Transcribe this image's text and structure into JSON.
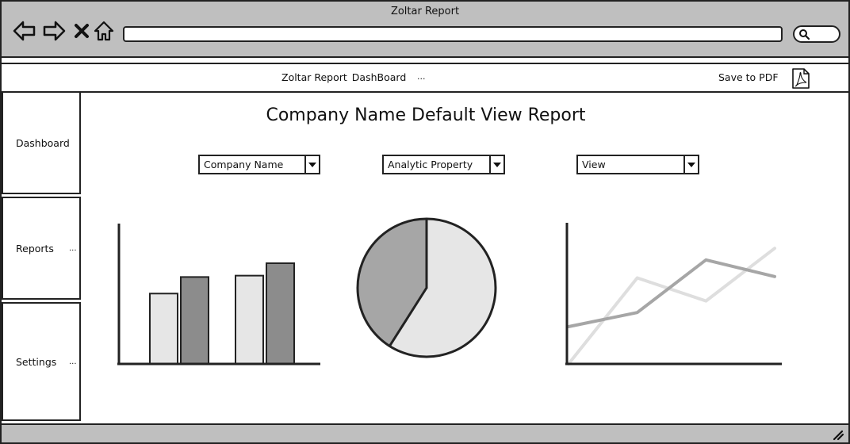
{
  "window": {
    "title": "Zoltar Report"
  },
  "chrome": {
    "buttons": [
      {
        "name": "back",
        "icon": "arrow-left-icon"
      },
      {
        "name": "forward",
        "icon": "arrow-right-icon"
      },
      {
        "name": "stop",
        "icon": "close-icon"
      },
      {
        "name": "home",
        "icon": "home-icon"
      }
    ],
    "url": "",
    "search_icon": "search-icon"
  },
  "appbar": {
    "title": "Zoltar Report",
    "subtitle": "DashBoard",
    "more": "...",
    "save_label": "Save to PDF",
    "save_icon": "pdf-icon"
  },
  "sidebar": {
    "items": [
      {
        "label": "Dashboard",
        "more": ""
      },
      {
        "label": "Reports",
        "more": "..."
      },
      {
        "label": "Settings",
        "more": "..."
      }
    ]
  },
  "main": {
    "title": "Company Name Default View Report",
    "filters": [
      {
        "value": "Company Name"
      },
      {
        "value": "Analytic Property"
      },
      {
        "value": "View"
      }
    ]
  },
  "colors": {
    "chrome": "#bfbfbf",
    "light": "#e6e6e6",
    "mid": "#a6a6a6",
    "dark": "#8c8c8c",
    "stroke": "#222222"
  },
  "chart_data": [
    {
      "type": "bar",
      "categories": [
        "",
        ""
      ],
      "series": [
        {
          "values": [
            51,
            64
          ]
        },
        {
          "values": [
            63,
            73
          ]
        }
      ],
      "ylim": [
        0,
        100
      ],
      "grid": false
    },
    {
      "type": "pie",
      "values": [
        59,
        41
      ]
    },
    {
      "type": "line",
      "x": [
        0,
        1,
        2,
        3
      ],
      "series": [
        {
          "values": [
            0,
            67,
            49,
            90
          ]
        },
        {
          "values": [
            29,
            40,
            81,
            68
          ]
        }
      ],
      "ylim": [
        0,
        100
      ],
      "grid": false
    }
  ]
}
